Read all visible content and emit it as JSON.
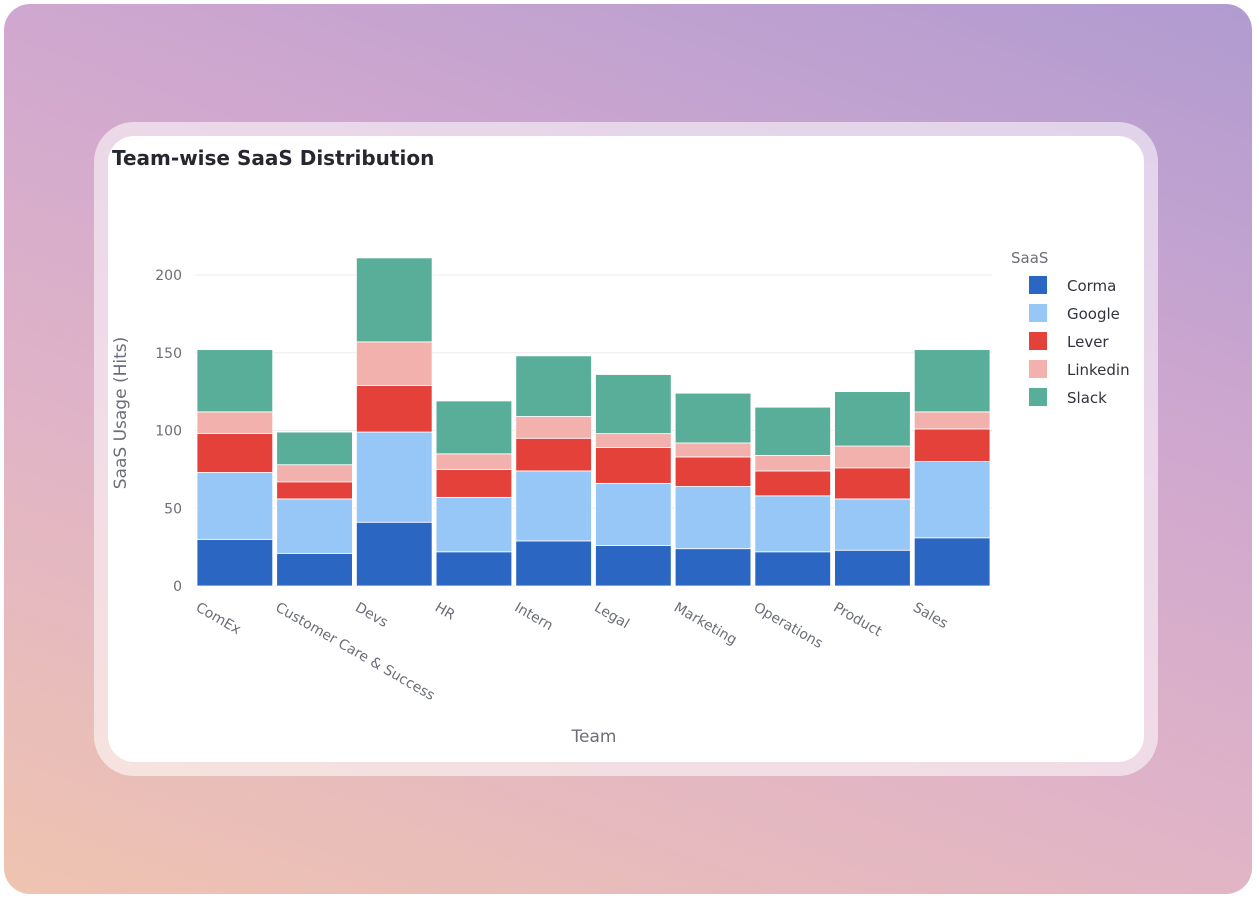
{
  "chart_data": {
    "type": "bar",
    "stacked": true,
    "title": "Team-wise SaaS Distribution",
    "xlabel": "Team",
    "ylabel": "SaaS Usage (Hits)",
    "ylim": [
      0,
      220
    ],
    "yticks": [
      0,
      50,
      100,
      150,
      200
    ],
    "grid": true,
    "legend_title": "SaaS",
    "legend_position": "right",
    "categories": [
      "ComEx",
      "Customer Care & Success",
      "Devs",
      "HR",
      "Intern",
      "Legal",
      "Marketing",
      "Operations",
      "Product",
      "Sales"
    ],
    "series": [
      {
        "name": "Corma",
        "color": "#2b66c2",
        "values": [
          30,
          21,
          41,
          22,
          29,
          26,
          24,
          22,
          23,
          31
        ]
      },
      {
        "name": "Google",
        "color": "#97c7f6",
        "values": [
          43,
          35,
          58,
          35,
          45,
          40,
          40,
          36,
          33,
          49
        ]
      },
      {
        "name": "Lever",
        "color": "#e5413b",
        "values": [
          25,
          11,
          30,
          18,
          21,
          23,
          19,
          16,
          20,
          21
        ]
      },
      {
        "name": "Linkedin",
        "color": "#f2b1ad",
        "values": [
          14,
          11,
          28,
          10,
          14,
          9,
          9,
          10,
          14,
          11
        ]
      },
      {
        "name": "Slack",
        "color": "#58ae99",
        "values": [
          40,
          21,
          54,
          34,
          39,
          38,
          32,
          31,
          35,
          40
        ]
      }
    ]
  }
}
